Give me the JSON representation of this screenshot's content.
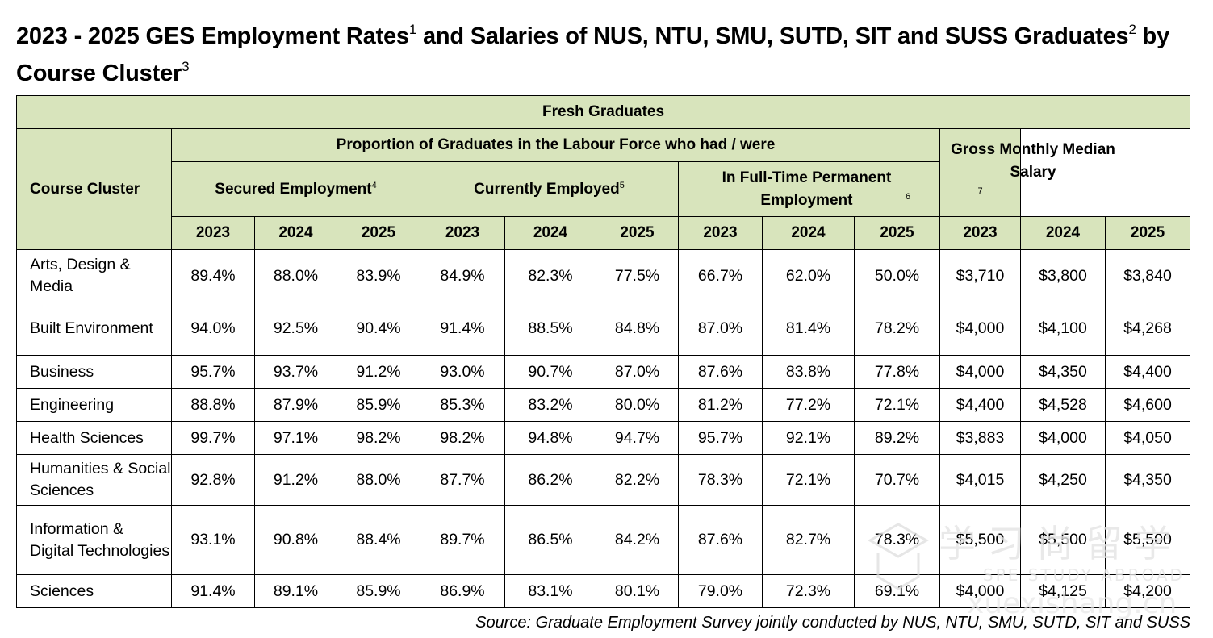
{
  "title": {
    "part1": "2023 - 2025 GES Employment Rates",
    "sup1": "1",
    "part2": " and Salaries of NUS, NTU, SMU, SUTD, SIT and SUSS Graduates",
    "sup2": "2",
    "part3": " by Course Cluster",
    "sup3": "3"
  },
  "table": {
    "top_header": "Fresh Graduates",
    "course_cluster_header": "Course Cluster",
    "proportion_header": "Proportion of Graduates in the Labour Force who had / were",
    "secured": {
      "label": "Secured Employment",
      "sup": "4"
    },
    "current": {
      "label": "Currently Employed",
      "sup": "5"
    },
    "fulltime": {
      "label": "In Full-Time Permanent Employment",
      "sup": "6"
    },
    "salary": {
      "label": "Gross Monthly Median Salary",
      "sup": "7"
    },
    "years": [
      "2023",
      "2024",
      "2025"
    ],
    "rows": [
      {
        "cluster": "Arts, Design & Media",
        "values": [
          "89.4%",
          "88.0%",
          "83.9%",
          "84.9%",
          "82.3%",
          "77.5%",
          "66.7%",
          "62.0%",
          "50.0%",
          "$3,710",
          "$3,800",
          "$3,840"
        ]
      },
      {
        "cluster": "Built Environment",
        "values": [
          "94.0%",
          "92.5%",
          "90.4%",
          "91.4%",
          "88.5%",
          "84.8%",
          "87.0%",
          "81.4%",
          "78.2%",
          "$4,000",
          "$4,100",
          "$4,268"
        ]
      },
      {
        "cluster": "Business",
        "values": [
          "95.7%",
          "93.7%",
          "91.2%",
          "93.0%",
          "90.7%",
          "87.0%",
          "87.6%",
          "83.8%",
          "77.8%",
          "$4,000",
          "$4,350",
          "$4,400"
        ]
      },
      {
        "cluster": "Engineering",
        "values": [
          "88.8%",
          "87.9%",
          "85.9%",
          "85.3%",
          "83.2%",
          "80.0%",
          "81.2%",
          "77.2%",
          "72.1%",
          "$4,400",
          "$4,528",
          "$4,600"
        ]
      },
      {
        "cluster": "Health Sciences",
        "values": [
          "99.7%",
          "97.1%",
          "98.2%",
          "98.2%",
          "94.8%",
          "94.7%",
          "95.7%",
          "92.1%",
          "89.2%",
          "$3,883",
          "$4,000",
          "$4,050"
        ]
      },
      {
        "cluster": "Humanities & Social Sciences",
        "values": [
          "92.8%",
          "91.2%",
          "88.0%",
          "87.7%",
          "86.2%",
          "82.2%",
          "78.3%",
          "72.1%",
          "70.7%",
          "$4,015",
          "$4,250",
          "$4,350"
        ]
      },
      {
        "cluster": "Information & Digital Technologies",
        "values": [
          "93.1%",
          "90.8%",
          "88.4%",
          "89.7%",
          "86.5%",
          "84.2%",
          "87.6%",
          "82.7%",
          "78.3%",
          "$5,500",
          "$5,500",
          "$5,500"
        ]
      },
      {
        "cluster": "Sciences",
        "values": [
          "91.4%",
          "89.1%",
          "85.9%",
          "86.9%",
          "83.1%",
          "80.1%",
          "79.0%",
          "72.3%",
          "69.1%",
          "$4,000",
          "$4,125",
          "$4,200"
        ]
      }
    ]
  },
  "source": "Source: Graduate Employment Survey jointly conducted by NUS, NTU, SMU, SUTD, SIT and SUSS",
  "colors": {
    "header_bg": "#d8e4bc",
    "border": "#000000"
  }
}
